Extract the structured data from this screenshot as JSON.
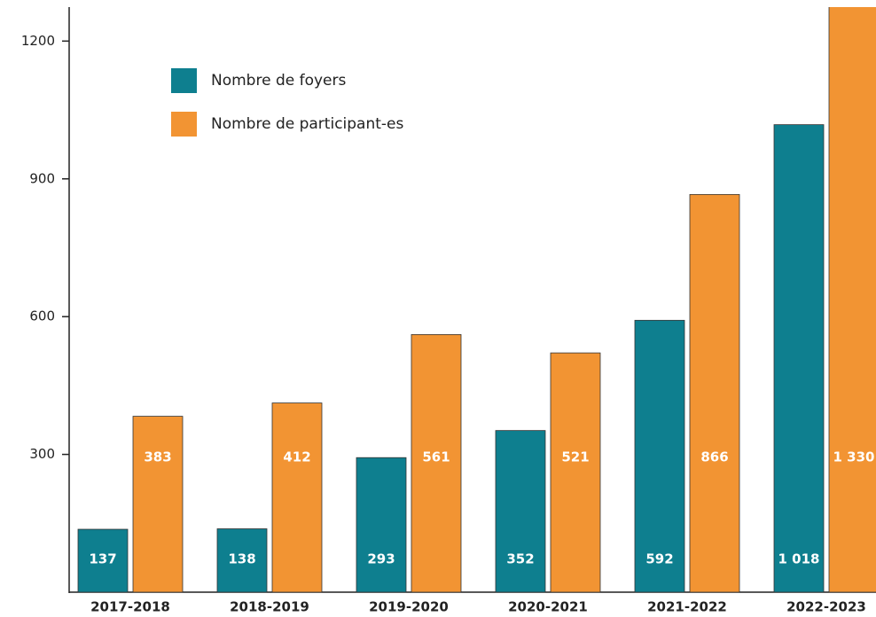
{
  "chart_data": {
    "type": "bar",
    "categories": [
      "2017-2018",
      "2018-2019",
      "2019-2020",
      "2020-2021",
      "2021-2022",
      "2022-2023"
    ],
    "series": [
      {
        "name": "Nombre de foyers",
        "color": "#0e7f8f",
        "values": [
          137,
          138,
          293,
          352,
          592,
          1018
        ],
        "value_labels": [
          "137",
          "138",
          "293",
          "352",
          "592",
          "1 018"
        ]
      },
      {
        "name": "Nombre de participant-es",
        "color": "#f29433",
        "values": [
          383,
          412,
          561,
          521,
          866,
          1330
        ],
        "value_labels": [
          "383",
          "412",
          "561",
          "521",
          "866",
          "1 330"
        ]
      }
    ],
    "ylim": [
      0,
      1274
    ],
    "yticks": [
      300,
      600,
      900,
      1200
    ],
    "legend": "upper left"
  }
}
